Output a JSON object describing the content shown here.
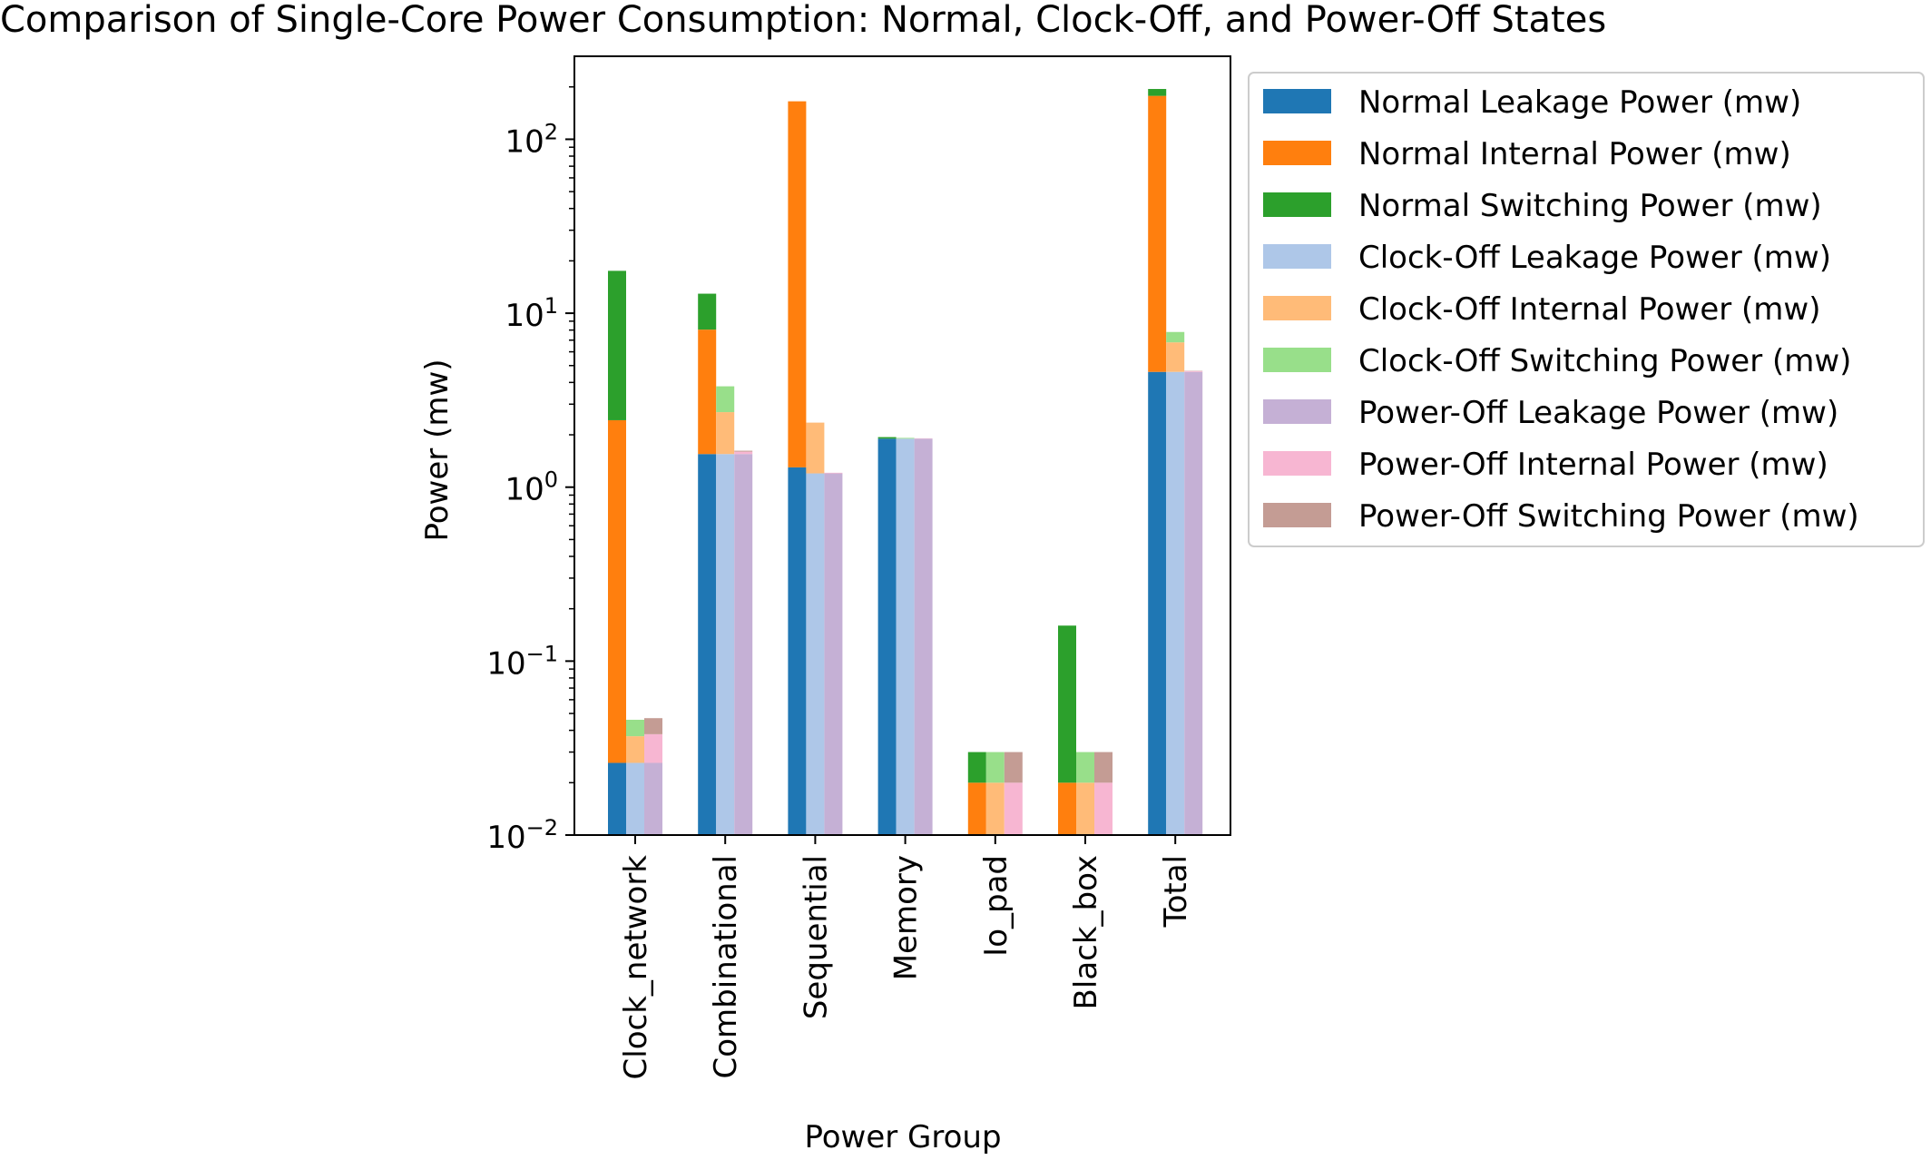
{
  "chart_data": {
    "type": "bar",
    "title": "Comparison of Single-Core Power Consumption: Normal, Clock-Off, and Power-Off States",
    "xlabel": "Power Group",
    "ylabel": "Power (mw)",
    "yscale": "log",
    "ylim": [
      0.01,
      300
    ],
    "yticks": [
      {
        "value": 0.01,
        "base": "10",
        "exp": "−2"
      },
      {
        "value": 0.1,
        "base": "10",
        "exp": "−1"
      },
      {
        "value": 1,
        "base": "10",
        "exp": "0"
      },
      {
        "value": 10,
        "base": "10",
        "exp": "1"
      },
      {
        "value": 100,
        "base": "10",
        "exp": "2"
      }
    ],
    "categories": [
      "Clock_network",
      "Combinational",
      "Sequential",
      "Memory",
      "Io_pad",
      "Black_box",
      "Total"
    ],
    "legend_position": "outside-right",
    "grid": false,
    "groups": [
      {
        "name": "Normal",
        "stack": [
          {
            "series": "Normal Leakage Power (mw)",
            "color": "#1f77b4",
            "values": [
              0.026,
              1.55,
              1.3,
              1.9,
              0,
              0,
              4.6
            ]
          },
          {
            "series": "Normal Internal Power (mw)",
            "color": "#ff7f0e",
            "values": [
              2.4,
              6.5,
              164,
              0,
              0.02,
              0.02,
              173
            ]
          },
          {
            "series": "Normal Switching Power (mw)",
            "color": "#2ca02c",
            "values": [
              15.1,
              4.9,
              0,
              0.04,
              0.01,
              0.14,
              17
            ]
          }
        ]
      },
      {
        "name": "Clock-Off",
        "stack": [
          {
            "series": "Clock-Off Leakage Power (mw)",
            "color": "#aec7e8",
            "values": [
              0.026,
              1.55,
              1.2,
              1.9,
              0,
              0,
              4.6
            ]
          },
          {
            "series": "Clock-Off Internal Power (mw)",
            "color": "#ffbb78",
            "values": [
              0.011,
              1.15,
              1.15,
              0,
              0.02,
              0.02,
              2.2
            ]
          },
          {
            "series": "Clock-Off Switching Power (mw)",
            "color": "#98df8a",
            "values": [
              0.009,
              1.1,
              0,
              0.02,
              0.01,
              0.01,
              1.0
            ]
          }
        ]
      },
      {
        "name": "Power-Off",
        "stack": [
          {
            "series": "Power-Off Leakage Power (mw)",
            "color": "#c5b0d5",
            "values": [
              0.026,
              1.55,
              1.2,
              1.9,
              0,
              0,
              4.6
            ]
          },
          {
            "series": "Power-Off Internal Power (mw)",
            "color": "#f7b6d2",
            "values": [
              0.012,
              0.05,
              0.01,
              0.01,
              0.02,
              0.02,
              0.05
            ]
          },
          {
            "series": "Power-Off Switching Power (mw)",
            "color": "#c49c94",
            "values": [
              0.009,
              0.02,
              0,
              0,
              0.01,
              0.01,
              0.02
            ]
          }
        ]
      }
    ]
  }
}
